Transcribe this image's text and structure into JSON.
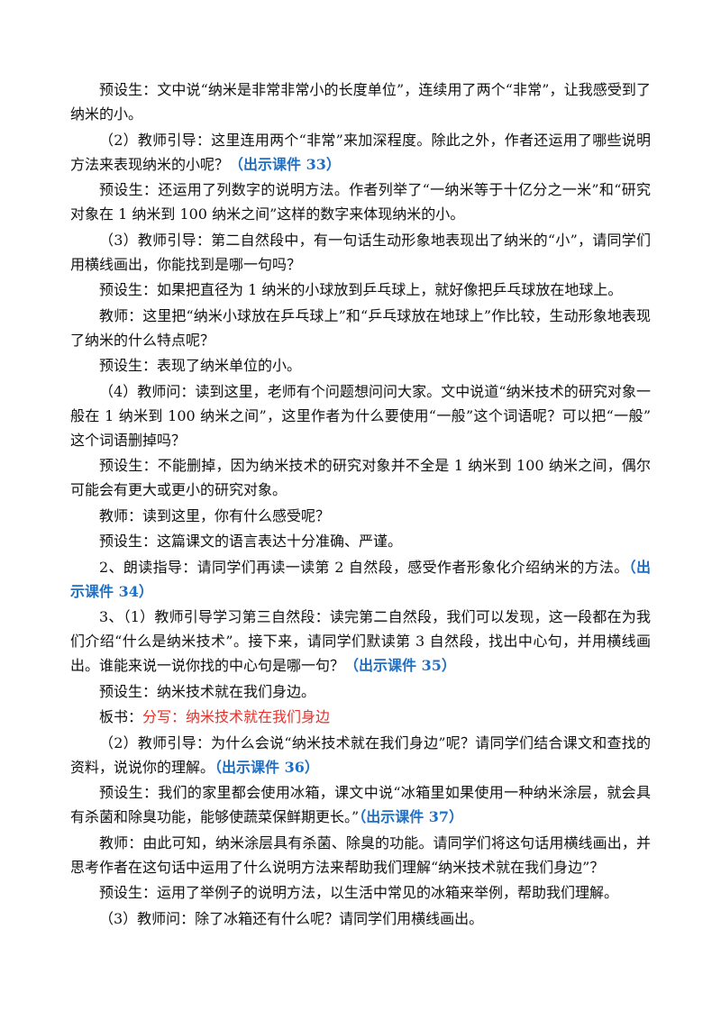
{
  "paragraphs": [
    [
      {
        "text": "预设生：文中说“纳米是非常非常小的长度单位”，连续用了两个“非常”，让我感受到了纳米的小。"
      }
    ],
    [
      {
        "text": "（2）教师引导：这里连用两个“非常”来加深程度。除此之外，作者还运用了哪些说明方法来表现纳米的小呢？"
      },
      {
        "text": "（出示课件 33）",
        "color": "#1f6fc5",
        "bold": true
      }
    ],
    [
      {
        "text": "预设生：还运用了列数字的说明方法。作者列举了“一纳米等于十亿分之一米”和“研究对象在 1 纳米到 100 纳米之间”这样的数字来体现纳米的小。"
      }
    ],
    [
      {
        "text": "（3）教师引导：第二自然段中，有一句话生动形象地表现出了纳米的“小”，请同学们用横线画出，你能找到是哪一句吗？"
      }
    ],
    [
      {
        "text": "预设生：如果把直径为 1 纳米的小球放到乒乓球上，就好像把乒乓球放在地球上。"
      }
    ],
    [
      {
        "text": "教师：这里把“纳米小球放在乒乓球上”和“乒乓球放在地球上”作比较，生动形象地表现了纳米的什么特点呢？"
      }
    ],
    [
      {
        "text": "预设生：表现了纳米单位的小。"
      }
    ],
    [
      {
        "text": "（4）教师问：读到这里，老师有个问题想问问大家。文中说道“纳米技术的研究对象一般在 1 纳米到 100 纳米之间”，这里作者为什么要使用“一般”这个词语呢？可以把“一般”这个词语删掉吗？"
      }
    ],
    [
      {
        "text": "预设生：不能删掉，因为纳米技术的研究对象并不全是 1 纳米到 100 纳米之间，偶尔可能会有更大或更小的研究对象。"
      }
    ],
    [
      {
        "text": "教师：读到这里，你有什么感受呢？"
      }
    ],
    [
      {
        "text": "预设生：这篇课文的语言表达十分准确、严谨。"
      }
    ],
    [
      {
        "text": "2、朗读指导：请同学们再读一读第 2 自然段，感受作者形象化介绍纳米的方法。"
      },
      {
        "text": "（出示课件 34）",
        "color": "#1f6fc5",
        "bold": true
      }
    ],
    [
      {
        "text": "3、（1）教师引导学习第三自然段：读完第二自然段，我们可以发现，这一段都在为我们介绍“什么是纳米技术”。接下来，请同学们默读第 3 自然段，找出中心句，并用横线画出。谁能来说一说你找的中心句是哪一句？"
      },
      {
        "text": "（出示课件 35）",
        "color": "#1f6fc5",
        "bold": true
      }
    ],
    [
      {
        "text": "预设生：纳米技术就在我们身边。"
      }
    ],
    [
      {
        "text": "板书："
      },
      {
        "text": "分写：纳米技术就在我们身边",
        "color": "#e8302a"
      }
    ],
    [
      {
        "text": "（2）教师引导：为什么会说“纳米技术就在我们身边”呢？请同学们结合课文和查找的资料，说说你的理解。"
      },
      {
        "text": "（出示课件 36）",
        "color": "#1f6fc5",
        "bold": true
      }
    ],
    [
      {
        "text": "预设生：我们的家里都会使用冰箱，课文中说“冰箱里如果使用一种纳米涂层，就会具有杀菌和除臭功能，能够使蔬菜保鲜期更长。”"
      },
      {
        "text": "（出示课件 37）",
        "color": "#1f6fc5",
        "bold": true
      }
    ],
    [
      {
        "text": "教师：由此可知，纳米涂层具有杀菌、除臭的功能。请同学们将这句话用横线画出，并思考作者在这句话中运用了什么说明方法来帮助我们理解“纳米技术就在我们身边”？"
      }
    ],
    [
      {
        "text": "预设生：运用了举例子的说明方法，以生活中常见的冰箱来举例，帮助我们理解。"
      }
    ],
    [
      {
        "text": "（3）教师问：除了冰箱还有什么呢？请同学们用横线画出。"
      }
    ]
  ]
}
